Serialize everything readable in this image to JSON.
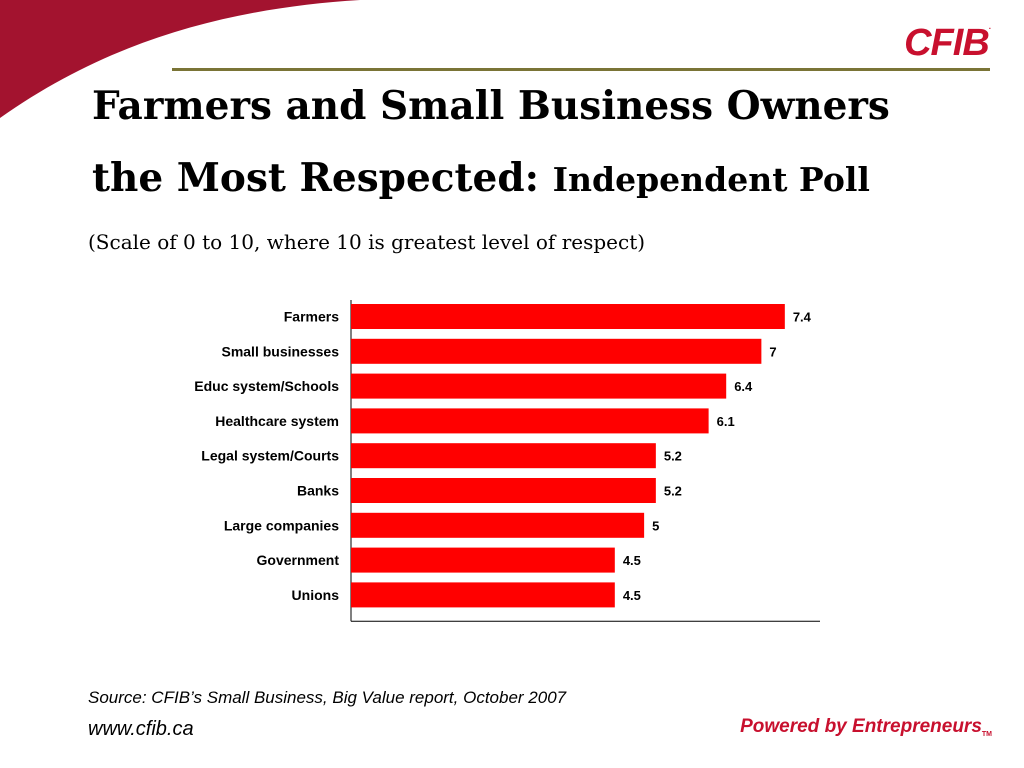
{
  "logo": {
    "text": "CFIB",
    "mark": "."
  },
  "title": {
    "line1": "Farmers and Small Business Owners",
    "line2_main": "the Most Respected:",
    "line2_sub": "Independent Poll"
  },
  "subtitle": "(Scale of 0 to 10, where 10 is greatest level of respect)",
  "chart_data": {
    "type": "bar",
    "orientation": "horizontal",
    "categories": [
      "Farmers",
      "Small businesses",
      "Educ system/Schools",
      "Healthcare system",
      "Legal system/Courts",
      "Banks",
      "Large companies",
      "Government",
      "Unions"
    ],
    "values": [
      7.4,
      7,
      6.4,
      6.1,
      5.2,
      5.2,
      5,
      4.5,
      4.5
    ],
    "value_labels": [
      "7.4",
      "7",
      "6.4",
      "6.1",
      "5.2",
      "5.2",
      "5",
      "4.5",
      "4.5"
    ],
    "xlim": [
      0,
      8
    ],
    "bar_color": "#ff0000",
    "grid": false,
    "legend": false
  },
  "footer": {
    "source": "Source: CFIB’s Small Business, Big Value report, October 2007",
    "url": "www.cfib.ca",
    "tagline": "Powered by Entrepreneurs",
    "tagline_mark": "TM"
  },
  "colors": {
    "brand_red": "#c8102e",
    "rule_olive": "#7a7436",
    "swoosh": "#a3132f"
  }
}
